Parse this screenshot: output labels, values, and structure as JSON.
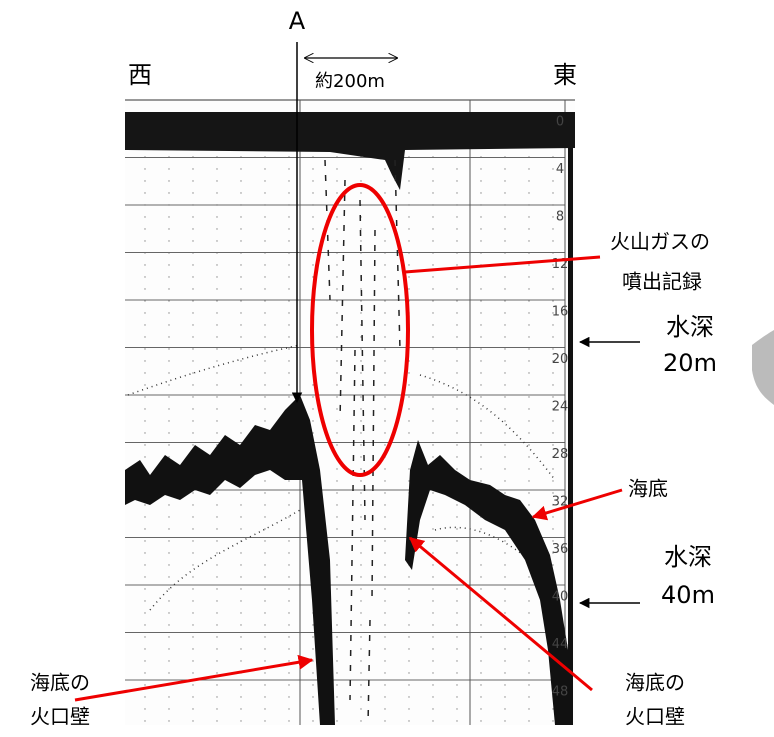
{
  "labels": {
    "a": "A",
    "distance": "約200m",
    "west": "西",
    "east": "東",
    "gas_line1": "火山ガスの",
    "gas_line2": "噴出記録",
    "depth20_line1": "水深",
    "depth20_line2": "20m",
    "seabed": "海底",
    "depth40_line1": "水深",
    "depth40_line2": "40m",
    "wall_left_line1": "海底の",
    "wall_left_line2": "火口壁",
    "wall_right_line1": "海底の",
    "wall_right_line2": "火口壁"
  },
  "depth_scale": [
    "0",
    "4",
    "8",
    "12",
    "16",
    "20",
    "24",
    "28",
    "32",
    "36",
    "40",
    "44",
    "48"
  ]
}
